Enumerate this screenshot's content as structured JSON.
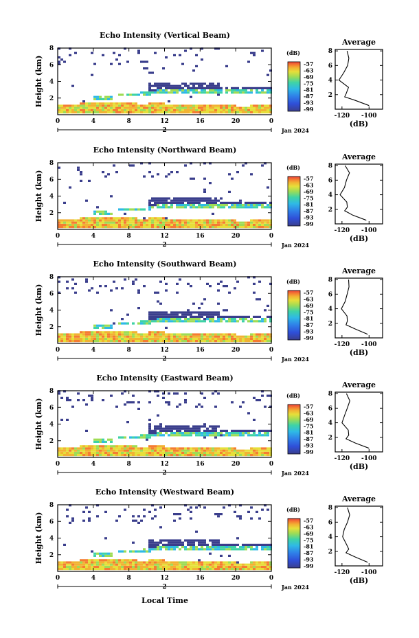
{
  "panels": [
    {
      "title": "Echo Intensity (Vertical Beam)"
    },
    {
      "title": "Echo Intensity (Northward Beam)"
    },
    {
      "title": "Echo Intensity (Southward Beam)"
    },
    {
      "title": "Echo Intensity (Eastward Beam)"
    },
    {
      "title": "Echo Intensity (Westward Beam)"
    }
  ],
  "common": {
    "ylabel": "Height (km)",
    "yticks": [
      "2",
      "4",
      "6",
      "8"
    ],
    "xticks": [
      "0",
      "4",
      "8",
      "12",
      "16",
      "20",
      "0"
    ],
    "date_tick": "2",
    "date_label": "Jan 2024",
    "xlabel": "Local Time",
    "colorbar_unit": "(dB)",
    "colorbar_ticks": [
      "-57",
      "-63",
      "-69",
      "-75",
      "-81",
      "-87",
      "-93",
      "-99"
    ],
    "avg_title": "Average",
    "avg_xticks": [
      "-120",
      "-100"
    ],
    "avg_xlabel": "(dB)",
    "avg_yticks": [
      "2",
      "4",
      "6",
      "8"
    ]
  },
  "colors": {
    "scale": [
      "#e8403a",
      "#f57c32",
      "#f2b233",
      "#e6df3a",
      "#9fdc55",
      "#3fd3a6",
      "#2fb9e6",
      "#2f7fe8",
      "#2f4fd8",
      "#3a3e8c"
    ],
    "low": "#3a3e8c"
  },
  "chart_data": [
    {
      "type": "heatmap",
      "title": "Echo Intensity (Vertical Beam)",
      "xlabel": "Local Time",
      "ylabel": "Height (km)",
      "xlim": [
        0,
        24
      ],
      "ylim": [
        0,
        8
      ],
      "colorbar_range": [
        -99,
        -57
      ],
      "average_profile": {
        "x": [
          -100,
          -110,
          -118,
          -117,
          -116,
          -122,
          -118,
          -116,
          -114,
          -117
        ],
        "y": [
          0.5,
          1.2,
          1.7,
          2.1,
          3.0,
          4.0,
          5.0,
          6.0,
          7.0,
          8.0
        ]
      }
    },
    {
      "type": "heatmap",
      "title": "Echo Intensity (Northward Beam)",
      "xlabel": "Local Time",
      "ylabel": "Height (km)",
      "xlim": [
        0,
        24
      ],
      "ylim": [
        0,
        8
      ],
      "colorbar_range": [
        -99,
        -57
      ],
      "average_profile": {
        "x": [
          -102,
          -112,
          -118,
          -116,
          -117,
          -122,
          -118,
          -116,
          -114,
          -117
        ],
        "y": [
          0.5,
          1.2,
          1.8,
          2.3,
          3.0,
          4.0,
          5.0,
          6.0,
          7.0,
          8.0
        ]
      }
    },
    {
      "type": "heatmap",
      "title": "Echo Intensity (Southward Beam)",
      "xlabel": "Local Time",
      "ylabel": "Height (km)",
      "xlim": [
        0,
        24
      ],
      "ylim": [
        0,
        8
      ],
      "colorbar_range": [
        -99,
        -57
      ],
      "average_profile": {
        "x": [
          -101,
          -110,
          -117,
          -116,
          -116,
          -120,
          -118,
          -116,
          -114,
          -116
        ],
        "y": [
          0.5,
          1.2,
          1.8,
          2.3,
          3.0,
          4.0,
          5.0,
          6.0,
          7.0,
          8.0
        ]
      }
    },
    {
      "type": "heatmap",
      "title": "Echo Intensity (Eastward Beam)",
      "xlabel": "Local Time",
      "ylabel": "Height (km)",
      "xlim": [
        0,
        24
      ],
      "ylim": [
        0,
        8
      ],
      "colorbar_range": [
        -99,
        -57
      ],
      "average_profile": {
        "x": [
          -100,
          -110,
          -117,
          -115,
          -116,
          -120,
          -119,
          -116,
          -114,
          -116
        ],
        "y": [
          0.5,
          1.2,
          1.8,
          2.3,
          3.0,
          4.0,
          5.0,
          6.0,
          7.0,
          8.0
        ]
      }
    },
    {
      "type": "heatmap",
      "title": "Echo Intensity (Westward Beam)",
      "xlabel": "Local Time",
      "ylabel": "Height (km)",
      "xlim": [
        0,
        24
      ],
      "ylim": [
        0,
        8
      ],
      "colorbar_range": [
        -99,
        -57
      ],
      "average_profile": {
        "x": [
          -101,
          -110,
          -117,
          -115,
          -116,
          -120,
          -119,
          -116,
          -114,
          -116
        ],
        "y": [
          0.5,
          1.2,
          1.8,
          2.3,
          3.0,
          4.0,
          5.0,
          6.0,
          7.0,
          8.0
        ]
      }
    }
  ]
}
